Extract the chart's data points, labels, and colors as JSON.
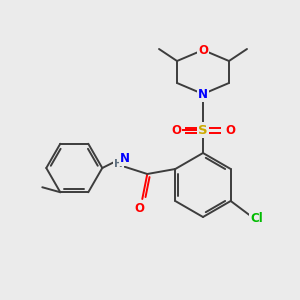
{
  "bg_color": "#ebebeb",
  "atom_colors": {
    "C": "#3d3d3d",
    "N": "#0000ff",
    "O": "#ff0000",
    "S": "#ccaa00",
    "Cl": "#00bb00",
    "H": "#607080"
  },
  "fig_width": 3.0,
  "fig_height": 3.0,
  "dpi": 100,
  "lw": 1.4,
  "fs": 8.5
}
